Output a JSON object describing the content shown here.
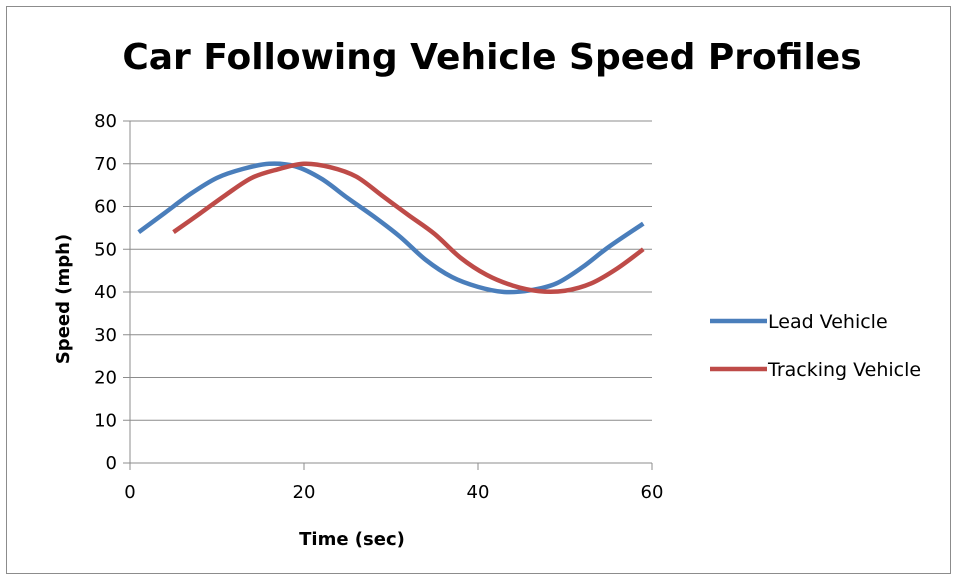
{
  "chart_data": {
    "type": "line",
    "title": "Car Following Vehicle Speed Profiles",
    "xlabel": "Time (sec)",
    "ylabel": "Speed (mph)",
    "xlim": [
      0,
      60
    ],
    "ylim": [
      0,
      80
    ],
    "xticks": [
      0,
      20,
      40,
      60
    ],
    "yticks": [
      0,
      10,
      20,
      30,
      40,
      50,
      60,
      70,
      80
    ],
    "grid": "horizontal",
    "legend_position": "right",
    "series": [
      {
        "name": "Lead Vehicle",
        "color": "#4a7ebb",
        "x": [
          1,
          4,
          7,
          10,
          13,
          16,
          19,
          22,
          25,
          28,
          31,
          34,
          37,
          40,
          43,
          46,
          49,
          52,
          55,
          59
        ],
        "y": [
          54,
          58.5,
          63,
          66.7,
          68.8,
          70,
          69.4,
          66.5,
          62,
          57.7,
          53,
          47.5,
          43.5,
          41.2,
          40,
          40.4,
          42,
          45.8,
          50.5,
          56
        ]
      },
      {
        "name": "Tracking Vehicle",
        "color": "#be4b48",
        "x": [
          5,
          8,
          11,
          14,
          17,
          20,
          23,
          26,
          29,
          32,
          35,
          38,
          41,
          44,
          47,
          50,
          53,
          56,
          59
        ],
        "y": [
          54,
          58.3,
          62.7,
          66.7,
          68.7,
          70,
          69.2,
          67,
          62.5,
          58,
          53.6,
          48,
          44,
          41.5,
          40.2,
          40.3,
          42,
          45.5,
          50
        ]
      }
    ]
  }
}
